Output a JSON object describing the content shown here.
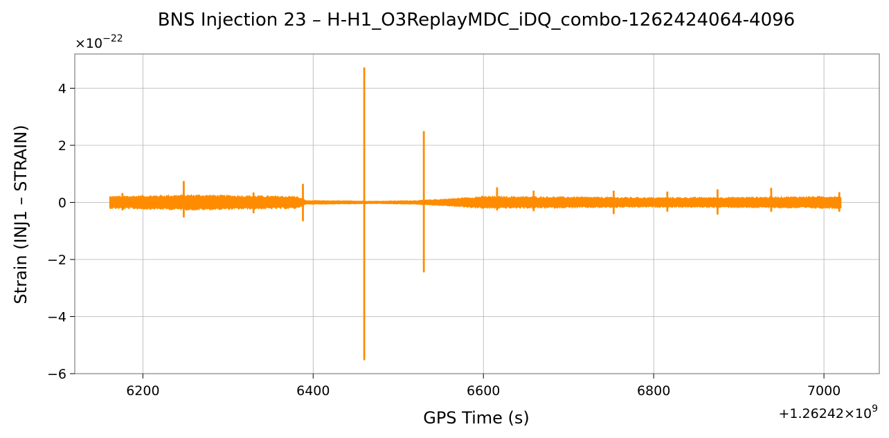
{
  "chart_data": {
    "type": "line",
    "title": "BNS Injection 23 – H-H1_O3ReplayMDC_iDQ_combo-1262424064-4096",
    "xlabel": "GPS Time (s)",
    "ylabel": "Strain (INJ1 – STRAIN)",
    "x_offset_label": "+1.26242×10",
    "x_offset_exp": "9",
    "y_scale_label": "×10",
    "y_scale_exp": "−22",
    "xlim": [
      6120,
      7065
    ],
    "ylim": [
      -6,
      5.2
    ],
    "xticks": [
      {
        "value": 6200,
        "label": "6200"
      },
      {
        "value": 6400,
        "label": "6400"
      },
      {
        "value": 6600,
        "label": "6600"
      },
      {
        "value": 6800,
        "label": "6800"
      },
      {
        "value": 7000,
        "label": "7000"
      }
    ],
    "yticks": [
      {
        "value": -6,
        "label": "−6"
      },
      {
        "value": -4,
        "label": "−4"
      },
      {
        "value": -2,
        "label": "−2"
      },
      {
        "value": 0,
        "label": "0"
      },
      {
        "value": 2,
        "label": "2"
      },
      {
        "value": 4,
        "label": "4"
      }
    ],
    "grid": true,
    "series_color": "#ff8c00",
    "series": [
      {
        "x_range": [
          6161,
          7020
        ],
        "noise_band": [
          {
            "x": 6161,
            "amp": 0.2
          },
          {
            "x": 6200,
            "amp": 0.22
          },
          {
            "x": 6260,
            "amp": 0.25
          },
          {
            "x": 6320,
            "amp": 0.22
          },
          {
            "x": 6380,
            "amp": 0.2
          },
          {
            "x": 6392,
            "amp": 0.06
          },
          {
            "x": 6450,
            "amp": 0.05
          },
          {
            "x": 6470,
            "amp": 0.04
          },
          {
            "x": 6520,
            "amp": 0.06
          },
          {
            "x": 6560,
            "amp": 0.12
          },
          {
            "x": 6600,
            "amp": 0.2
          },
          {
            "x": 6700,
            "amp": 0.18
          },
          {
            "x": 6800,
            "amp": 0.16
          },
          {
            "x": 6900,
            "amp": 0.17
          },
          {
            "x": 7020,
            "amp": 0.2
          }
        ],
        "spikes": [
          {
            "x": 6176,
            "min": -0.25,
            "max": 0.3
          },
          {
            "x": 6248,
            "min": -0.5,
            "max": 0.72
          },
          {
            "x": 6330,
            "min": -0.35,
            "max": 0.32
          },
          {
            "x": 6388,
            "min": -0.63,
            "max": 0.62
          },
          {
            "x": 6460,
            "min": -5.5,
            "max": 4.7
          },
          {
            "x": 6530,
            "min": -2.42,
            "max": 2.47
          },
          {
            "x": 6616,
            "min": -0.25,
            "max": 0.5
          },
          {
            "x": 6659,
            "min": -0.28,
            "max": 0.38
          },
          {
            "x": 6753,
            "min": -0.38,
            "max": 0.38
          },
          {
            "x": 6816,
            "min": -0.3,
            "max": 0.35
          },
          {
            "x": 6875,
            "min": -0.4,
            "max": 0.43
          },
          {
            "x": 6938,
            "min": -0.3,
            "max": 0.48
          },
          {
            "x": 7018,
            "min": -0.3,
            "max": 0.33
          }
        ]
      }
    ]
  }
}
